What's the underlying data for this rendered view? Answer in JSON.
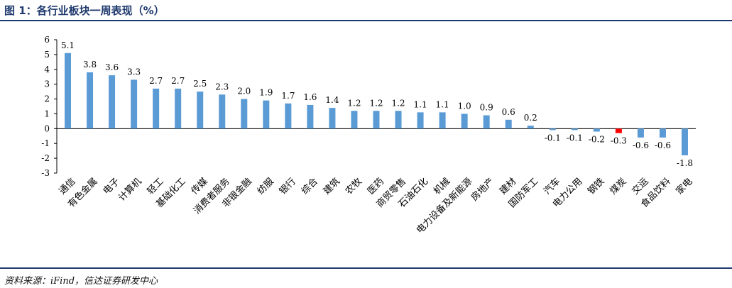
{
  "header": {
    "title": "图 1：各行业板块一周表现（%）"
  },
  "footer": {
    "source": "资料来源：iFind，信达证券研发中心"
  },
  "colors": {
    "positive": "#5b9bd5",
    "negative": "#5b9bd5",
    "highlight": "#ff0000",
    "rule": "#1f3a6e"
  },
  "chart_data": {
    "type": "bar",
    "categories": [
      "通信",
      "有色金属",
      "电子",
      "计算机",
      "轻工",
      "基础化工",
      "传媒",
      "消费者服务",
      "非银金融",
      "纺服",
      "银行",
      "综合",
      "建筑",
      "农牧",
      "医药",
      "商贸零售",
      "石油石化",
      "机械",
      "电力设备及新能源",
      "房地产",
      "建材",
      "国防军工",
      "汽车",
      "电力公用",
      "钢铁",
      "煤炭",
      "交运",
      "食品饮料",
      "家电"
    ],
    "values": [
      5.1,
      3.8,
      3.6,
      3.3,
      2.7,
      2.7,
      2.5,
      2.3,
      2.0,
      1.9,
      1.7,
      1.6,
      1.4,
      1.2,
      1.2,
      1.2,
      1.1,
      1.1,
      1.0,
      0.9,
      0.6,
      0.2,
      -0.1,
      -0.1,
      -0.2,
      -0.3,
      -0.6,
      -0.6,
      -1.8
    ],
    "value_labels": [
      "5.1",
      "3.8",
      "3.6",
      "3.3",
      "2.7",
      "2.7",
      "2.5",
      "2.3",
      "2.0",
      "1.9",
      "1.7",
      "1.6",
      "1.4",
      "1.2",
      "1.2",
      "1.2",
      "1.1",
      "1.1",
      "1.0",
      "0.9",
      "0.6",
      "0.2",
      "-0.1",
      "-0.1",
      "-0.2",
      "-0.3",
      "-0.6",
      "-0.6",
      "-1.8"
    ],
    "highlight_category": "煤炭",
    "ylim": [
      -3,
      6
    ],
    "yticks": [
      "-3",
      "-2",
      "-1",
      "0",
      "1",
      "2",
      "3",
      "4",
      "5",
      "6"
    ],
    "grid": false,
    "legend": "none",
    "xlabel": "",
    "ylabel": ""
  }
}
